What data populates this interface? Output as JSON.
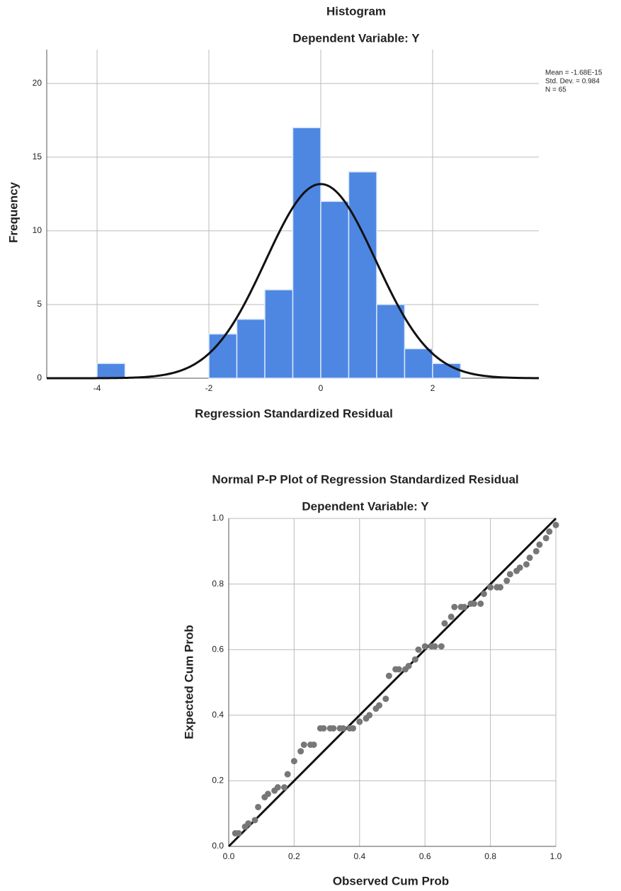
{
  "chart_data": [
    {
      "type": "histogram",
      "title": "Histogram",
      "subtitle": "Dependent Variable: Y",
      "x_label": "Regression Standardized Residual",
      "y_label": "Frequency",
      "bins": [
        -4,
        -3.5,
        -3,
        -2.5,
        -2,
        -1.5,
        -1,
        -0.5,
        0,
        0.5,
        1,
        1.5,
        2,
        2.5
      ],
      "values": [
        1,
        0,
        0,
        0,
        3,
        4,
        6,
        17,
        12,
        14,
        5,
        2,
        1
      ],
      "color": "#4d87e2",
      "stats": [
        {
          "label": "Mean = -1.68E-15",
          "value": -1.68e-15
        },
        {
          "label": "Std. Dev. = 0.984",
          "value": 0.984
        },
        {
          "label": "N = 65",
          "value": 65
        }
      ],
      "xlim": [
        -4.9,
        3.9
      ],
      "ylim": [
        0,
        22.3
      ],
      "xticks": [
        -4,
        -2,
        0,
        2
      ],
      "yticks": [
        0,
        5,
        10,
        15,
        20
      ],
      "grid": true
    },
    {
      "type": "scatter",
      "title": "Normal P-P Plot of Regression Standardized Residual",
      "subtitle": "Dependent Variable: Y",
      "x_label": "Observed Cum Prob",
      "y_label": "Expected Cum Prob",
      "x": [
        0.02,
        0.03,
        0.05,
        0.06,
        0.08,
        0.09,
        0.11,
        0.12,
        0.14,
        0.15,
        0.17,
        0.18,
        0.2,
        0.22,
        0.23,
        0.25,
        0.26,
        0.28,
        0.29,
        0.31,
        0.32,
        0.34,
        0.35,
        0.37,
        0.38,
        0.4,
        0.42,
        0.43,
        0.45,
        0.46,
        0.48,
        0.49,
        0.51,
        0.52,
        0.54,
        0.55,
        0.57,
        0.58,
        0.6,
        0.62,
        0.63,
        0.65,
        0.66,
        0.68,
        0.69,
        0.71,
        0.72,
        0.74,
        0.75,
        0.77,
        0.78,
        0.8,
        0.82,
        0.83,
        0.85,
        0.86,
        0.88,
        0.89,
        0.91,
        0.92,
        0.94,
        0.95,
        0.97,
        0.98,
        1.0
      ],
      "values": [
        0.04,
        0.04,
        0.06,
        0.07,
        0.08,
        0.12,
        0.15,
        0.16,
        0.17,
        0.18,
        0.18,
        0.22,
        0.26,
        0.29,
        0.31,
        0.31,
        0.31,
        0.36,
        0.36,
        0.36,
        0.36,
        0.36,
        0.36,
        0.36,
        0.36,
        0.38,
        0.39,
        0.4,
        0.42,
        0.43,
        0.45,
        0.52,
        0.54,
        0.54,
        0.54,
        0.55,
        0.57,
        0.6,
        0.61,
        0.61,
        0.61,
        0.61,
        0.68,
        0.7,
        0.73,
        0.73,
        0.73,
        0.74,
        0.74,
        0.74,
        0.77,
        0.79,
        0.79,
        0.79,
        0.81,
        0.83,
        0.84,
        0.85,
        0.86,
        0.88,
        0.9,
        0.92,
        0.94,
        0.96,
        0.98
      ],
      "color": "#777777",
      "xlim": [
        0,
        1
      ],
      "ylim": [
        0,
        1
      ],
      "xticks": [
        {
          "value": 0,
          "label": "0.0"
        },
        0.2,
        0.4,
        0.6,
        0.8,
        {
          "value": 1,
          "label": "1.0"
        }
      ],
      "yticks": [
        {
          "value": 0,
          "label": "0.0"
        },
        0.2,
        0.4,
        0.6,
        0.8,
        {
          "value": 1,
          "label": "1.0"
        }
      ],
      "grid": true
    }
  ]
}
